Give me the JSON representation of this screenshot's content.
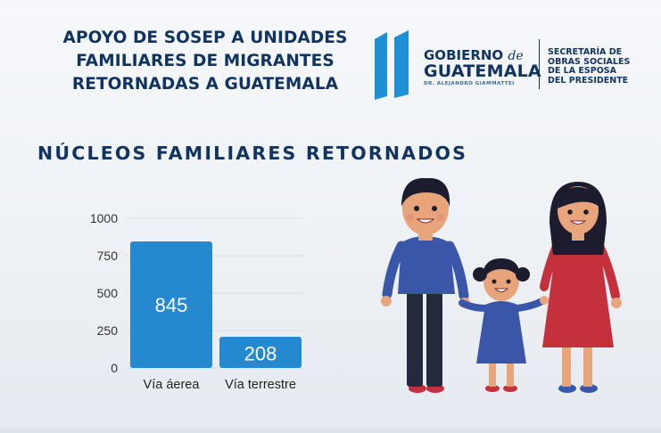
{
  "header": {
    "title_lines": [
      "APOYO DE SOSEP A UNIDADES",
      "FAMILIARES DE MIGRANTES",
      "RETORNADAS A GUATEMALA"
    ]
  },
  "logo": {
    "gobierno": "GOBIERNO",
    "de": "de",
    "guatemala": "GUATEMALA",
    "president": "DR. ALEJANDRO GIAMMATTEI",
    "secretaria_lines": [
      "SECRETARÍA DE",
      "OBRAS SOCIALES",
      "DE LA ESPOSA",
      "DEL PRESIDENTE"
    ],
    "stripe_color": "#1f8fd6"
  },
  "section": {
    "title": "NÚCLEOS FAMILIARES RETORNADOS"
  },
  "chart_data": {
    "type": "bar",
    "categories": [
      "Vía áerea",
      "Vía terrestre"
    ],
    "values": [
      845,
      208
    ],
    "value_labels": [
      "845",
      "208"
    ],
    "ylim": [
      0,
      1000
    ],
    "yticks": [
      0,
      250,
      500,
      750,
      1000
    ],
    "grid": true,
    "bar_color": "#2489cf",
    "legend": "none"
  },
  "illustration": {
    "icon": "family-illustration-icon"
  }
}
